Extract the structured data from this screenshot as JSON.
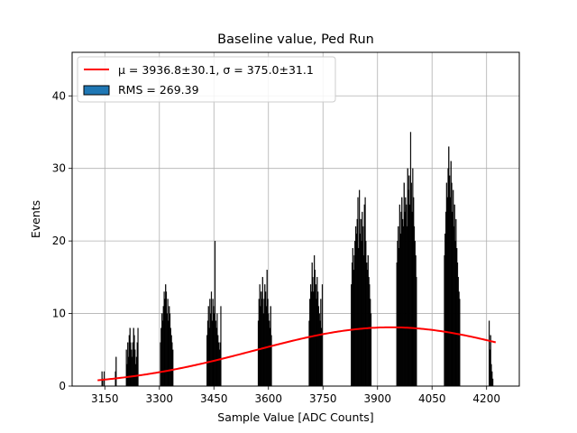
{
  "chart_data": {
    "type": "bar",
    "title": "Baseline value, Ped Run",
    "xlabel": "Sample Value [ADC Counts]",
    "ylabel": "Events",
    "xlim": [
      3060,
      4290
    ],
    "ylim": [
      0,
      46
    ],
    "x_ticks": [
      3150,
      3300,
      3450,
      3600,
      3750,
      3900,
      4050,
      4200
    ],
    "y_ticks": [
      0,
      10,
      20,
      30,
      40
    ],
    "grid": true,
    "legend_position": "top-left",
    "legend": {
      "fit_label": "$\\mu=3936.8\\pm30.1$, $\\sigma=375.0\\pm31.1$",
      "fit_label_text": "μ = 3936.8±30.1, σ = 375.0±31.1",
      "hist_label": "RMS = 269.39"
    },
    "fit": {
      "mu": 3936.8,
      "mu_err": 30.1,
      "sigma": 375.0,
      "sigma_err": 31.1,
      "amplitude": 8.1,
      "x_range": [
        3130,
        4225
      ],
      "color": "#ff0000"
    },
    "hist_color": "#000000",
    "legend_patch_color": "#1f77b4",
    "histogram_clusters": [
      {
        "center": 3145,
        "values": [
          2,
          1,
          0,
          2
        ]
      },
      {
        "center": 3180,
        "values": [
          2,
          4
        ]
      },
      {
        "center": 3225,
        "values": [
          5,
          3,
          6,
          4,
          7,
          8,
          6,
          5,
          4,
          6,
          8,
          7,
          5,
          3,
          4,
          6,
          8
        ]
      },
      {
        "center": 3320,
        "values": [
          6,
          8,
          10,
          9,
          11,
          13,
          12,
          14,
          13,
          10,
          12,
          9,
          11,
          10,
          8,
          7,
          6,
          5
        ]
      },
      {
        "center": 3450,
        "values": [
          7,
          9,
          11,
          8,
          12,
          10,
          13,
          9,
          12,
          11,
          10,
          20,
          9,
          8,
          10,
          7,
          6,
          5,
          6,
          11
        ]
      },
      {
        "center": 3590,
        "values": [
          9,
          12,
          14,
          11,
          13,
          12,
          15,
          10,
          12,
          14,
          13,
          11,
          16,
          12,
          10,
          9,
          8,
          11,
          7
        ]
      },
      {
        "center": 3730,
        "values": [
          9,
          12,
          14,
          13,
          17,
          15,
          13,
          18,
          16,
          14,
          12,
          15,
          13,
          11,
          10,
          9,
          12,
          8,
          14
        ]
      },
      {
        "center": 3855,
        "values": [
          14,
          17,
          19,
          16,
          18,
          20,
          22,
          21,
          23,
          26,
          19,
          27,
          21,
          23,
          20,
          24,
          22,
          18,
          25,
          26,
          20,
          17,
          16,
          18,
          15,
          14,
          12,
          10
        ]
      },
      {
        "center": 3980,
        "values": [
          17,
          20,
          22,
          19,
          25,
          21,
          24,
          26,
          23,
          22,
          28,
          24,
          26,
          25,
          22,
          30,
          27,
          29,
          25,
          35,
          28,
          24,
          30,
          26,
          22,
          20,
          18,
          15
        ]
      },
      {
        "center": 4105,
        "values": [
          18,
          21,
          24,
          28,
          26,
          30,
          33,
          29,
          26,
          31,
          28,
          24,
          27,
          22,
          25,
          20,
          23,
          19,
          17,
          15,
          13,
          12
        ]
      },
      {
        "center": 4212,
        "values": [
          9,
          5,
          7,
          3,
          2,
          1
        ]
      }
    ]
  }
}
